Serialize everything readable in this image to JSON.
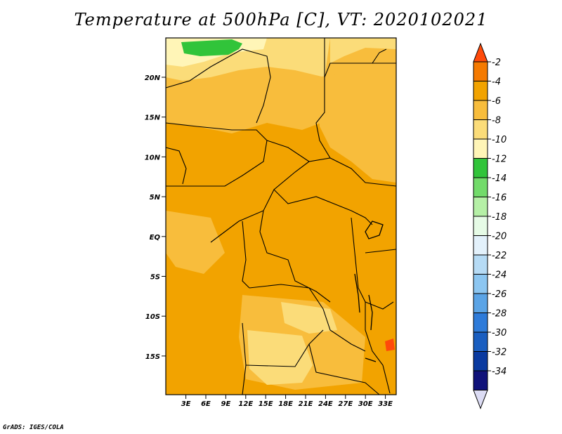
{
  "title": "Temperature at 500hPa [C], VT: 2020102021",
  "credit": "GrADS: IGES/COLA",
  "map": {
    "lat_labels": [
      "20N",
      "15N",
      "10N",
      "5N",
      "EQ",
      "5S",
      "10S",
      "15S"
    ],
    "lon_labels": [
      "3E",
      "6E",
      "9E",
      "12E",
      "15E",
      "18E",
      "21E",
      "24E",
      "27E",
      "30E",
      "33E"
    ]
  },
  "colorbar": {
    "labels": [
      "-2",
      "-4",
      "-6",
      "-8",
      "-10",
      "-12",
      "-14",
      "-16",
      "-18",
      "-20",
      "-22",
      "-24",
      "-26",
      "-28",
      "-30",
      "-32",
      "-34"
    ],
    "colors": [
      "#ff4a0a",
      "#f57a00",
      "#f2a300",
      "#f8bd3c",
      "#fbdc79",
      "#fff5b7",
      "#31c43a",
      "#72db6a",
      "#b5f0a6",
      "#e6fbe6",
      "#e3f1fb",
      "#b6dbf5",
      "#8cc6f1",
      "#5ba4e6",
      "#2e7bd9",
      "#1a5ec0",
      "#0a3aa0",
      "#10127a",
      "#dcdcf4"
    ]
  },
  "field_colors": {
    "orange_dark": "#f2a300",
    "orange_mid": "#f8bd3c",
    "yellow": "#fbdc79",
    "pale": "#fff5b7",
    "green": "#31c43a",
    "red": "#ff4a0a"
  }
}
